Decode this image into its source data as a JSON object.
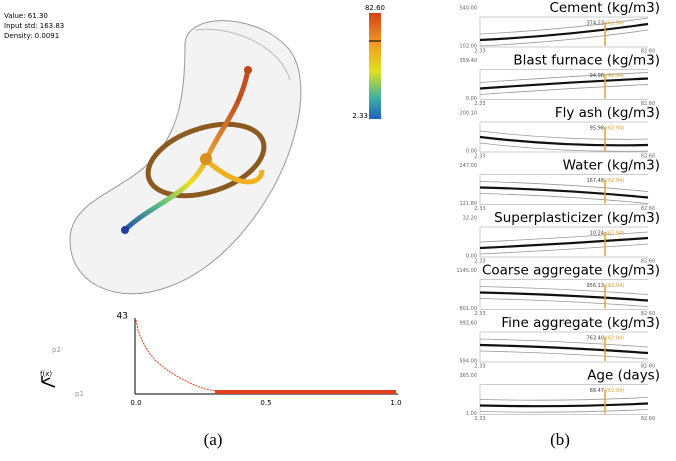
{
  "panel_a": {
    "info": [
      "Value: 61.30",
      "Input std: 163.83",
      "Density: 0.0091"
    ],
    "colorbar": {
      "max": "82.60",
      "min": "2.33"
    },
    "axis_labels": {
      "p2": "p2",
      "fx": "f(x)",
      "p1": "p1"
    },
    "histogram": {
      "ymax": "43",
      "xticks": [
        "0.0",
        "0.5",
        "1.0"
      ]
    },
    "caption": "(a)"
  },
  "panel_b": {
    "panels": [
      {
        "title": "Cement (kg/m3)",
        "ymax": "540.00",
        "ymin": "102.00",
        "value": "374.22",
        "target": "(62.94)",
        "x_min": "2.33",
        "x_max": "82.60"
      },
      {
        "title": "Blast furnace (kg/m3)",
        "ymax": "359.40",
        "ymin": "0.00",
        "value": "94.98",
        "target": "(62.94)",
        "x_min": "2.33",
        "x_max": "82.60"
      },
      {
        "title": "Fly ash (kg/m3)",
        "ymax": "200.10",
        "ymin": "0.00",
        "value": "95.98",
        "target": "(62.94)",
        "x_min": "2.33",
        "x_max": "82.60"
      },
      {
        "title": "Water (kg/m3)",
        "ymax": "247.00",
        "ymin": "121.80",
        "value": "167.48",
        "target": "(62.94)",
        "x_min": "2.33",
        "x_max": "82.60"
      },
      {
        "title": "Superplasticizer (kg/m3)",
        "ymax": "32.20",
        "ymin": "0.00",
        "value": "10.24",
        "target": "(62.94)",
        "x_min": "2.33",
        "x_max": "82.60"
      },
      {
        "title": "Coarse aggregate (kg/m3)",
        "ymax": "1145.00",
        "ymin": "801.00",
        "value": "956.13",
        "target": "(62.94)",
        "x_min": "2.33",
        "x_max": "82.60"
      },
      {
        "title": "Fine aggregate (kg/m3)",
        "ymax": "992.60",
        "ymin": "594.00",
        "value": "763.40",
        "target": "(62.94)",
        "x_min": "2.33",
        "x_max": "82.60"
      },
      {
        "title": "Age (days)",
        "ymax": "365.00",
        "ymin": "1.00",
        "value": "88.47",
        "target": "(62.94)",
        "x_min": "2.33",
        "x_max": "82.60"
      }
    ],
    "caption": "(b)"
  }
}
